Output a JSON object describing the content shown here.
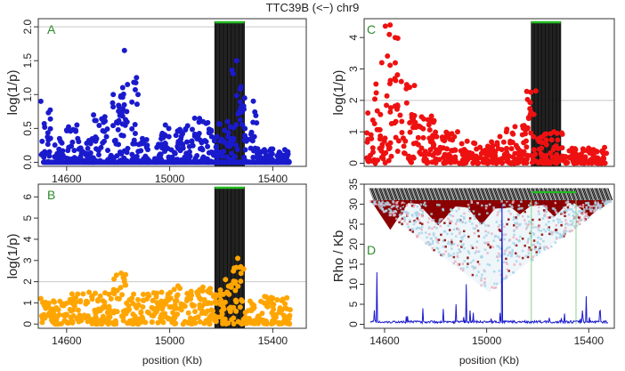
{
  "title": "TTC39B (<−) chr9",
  "colors": {
    "blue": "#1a1acd",
    "red": "#ee1111",
    "orange": "#ffa500",
    "green": "#22bb22",
    "darkred": "#8b0000",
    "lightblue": "#a8d4e6",
    "pink": "#e8b0c0",
    "rholine": "#1a1acd",
    "refline": "#c8c8c8"
  },
  "chart_data": [
    {
      "panel": "A",
      "type": "scatter",
      "color": "blue",
      "xlabel": "",
      "ylabel": "log(1/p)",
      "xlim": [
        14490,
        15530
      ],
      "ylim": [
        -0.06,
        2.12
      ],
      "yticks": [
        "0.0",
        "0.5",
        "1.0",
        "1.5",
        "2.0"
      ],
      "ytick_values": [
        0,
        0.5,
        1.0,
        1.5,
        2.0
      ],
      "xticks": [
        "14600",
        "15000",
        "15400"
      ],
      "xtick_values": [
        14600,
        15000,
        15400
      ],
      "threshold": 2.0,
      "gene_span": [
        15175,
        15290
      ],
      "clusters": [
        {
          "x0": 14500,
          "x1": 14540,
          "ymax": 0.9
        },
        {
          "x0": 14550,
          "x1": 14590,
          "ymax": 0.35
        },
        {
          "x0": 14600,
          "x1": 14640,
          "ymax": 0.55
        },
        {
          "x0": 14640,
          "x1": 14700,
          "ymax": 0.35
        },
        {
          "x0": 14700,
          "x1": 14760,
          "ymax": 0.7
        },
        {
          "x0": 14760,
          "x1": 14820,
          "ymax": 1.0
        },
        {
          "x0": 14800,
          "x1": 14830,
          "ymax": 1.65
        },
        {
          "x0": 14830,
          "x1": 14880,
          "ymax": 1.25
        },
        {
          "x0": 14880,
          "x1": 14920,
          "ymax": 0.35
        },
        {
          "x0": 14940,
          "x1": 14990,
          "ymax": 0.55
        },
        {
          "x0": 14990,
          "x1": 15060,
          "ymax": 0.5
        },
        {
          "x0": 15060,
          "x1": 15120,
          "ymax": 0.65
        },
        {
          "x0": 15120,
          "x1": 15180,
          "ymax": 0.6
        },
        {
          "x0": 15180,
          "x1": 15240,
          "ymax": 0.6
        },
        {
          "x0": 15240,
          "x1": 15290,
          "ymax": 1.5
        },
        {
          "x0": 15290,
          "x1": 15340,
          "ymax": 0.95
        },
        {
          "x0": 15340,
          "x1": 15470,
          "ymax": 0.2
        }
      ]
    },
    {
      "panel": "B",
      "type": "scatter",
      "color": "orange",
      "xlabel": "position (Kb)",
      "ylabel": "log(1/p)",
      "xlim": [
        14490,
        15530
      ],
      "ylim": [
        -0.2,
        6.6
      ],
      "yticks": [
        "0",
        "1",
        "2",
        "3",
        "4",
        "5",
        "6"
      ],
      "ytick_values": [
        0,
        1,
        2,
        3,
        4,
        5,
        6
      ],
      "xticks": [
        "14600",
        "15000",
        "15400"
      ],
      "xtick_values": [
        14600,
        15000,
        15400
      ],
      "threshold": 2.0,
      "gene_span": [
        15175,
        15290
      ],
      "clusters": [
        {
          "x0": 14500,
          "x1": 14620,
          "ymax": 1.2
        },
        {
          "x0": 14620,
          "x1": 14780,
          "ymax": 1.5
        },
        {
          "x0": 14780,
          "x1": 14830,
          "ymax": 2.4
        },
        {
          "x0": 14830,
          "x1": 15000,
          "ymax": 1.5
        },
        {
          "x0": 15000,
          "x1": 15180,
          "ymax": 1.8
        },
        {
          "x0": 15180,
          "x1": 15240,
          "ymax": 2.1
        },
        {
          "x0": 15240,
          "x1": 15290,
          "ymax": 3.1
        },
        {
          "x0": 15290,
          "x1": 15470,
          "ymax": 1.3
        }
      ]
    },
    {
      "panel": "C",
      "type": "scatter",
      "color": "red",
      "xlabel": "",
      "ylabel": "log(1/p)",
      "xlim": [
        14520,
        15500
      ],
      "ylim": [
        -0.1,
        4.6
      ],
      "yticks": [
        "0",
        "1",
        "2",
        "3",
        "4"
      ],
      "ytick_values": [
        0,
        1,
        2,
        3,
        4
      ],
      "xticks": [],
      "xtick_values": [],
      "threshold": 2.0,
      "gene_span": [
        15175,
        15290
      ],
      "clusters": [
        {
          "x0": 14530,
          "x1": 14560,
          "ymax": 1.6
        },
        {
          "x0": 14560,
          "x1": 14600,
          "ymax": 3.2
        },
        {
          "x0": 14600,
          "x1": 14640,
          "ymax": 4.4
        },
        {
          "x0": 14640,
          "x1": 14680,
          "ymax": 4.0
        },
        {
          "x0": 14680,
          "x1": 14720,
          "ymax": 2.5
        },
        {
          "x0": 14720,
          "x1": 14800,
          "ymax": 1.5
        },
        {
          "x0": 14800,
          "x1": 14900,
          "ymax": 1.0
        },
        {
          "x0": 14900,
          "x1": 15050,
          "ymax": 0.7
        },
        {
          "x0": 15050,
          "x1": 15150,
          "ymax": 1.2
        },
        {
          "x0": 15150,
          "x1": 15200,
          "ymax": 2.3
        },
        {
          "x0": 15200,
          "x1": 15300,
          "ymax": 1.0
        },
        {
          "x0": 15300,
          "x1": 15470,
          "ymax": 0.5
        }
      ]
    },
    {
      "panel": "D",
      "type": "line",
      "color": "rholine",
      "xlabel": "position (Kb)",
      "ylabel": "Rho / Kb",
      "xlim": [
        14520,
        15500
      ],
      "ylim": [
        -1,
        35
      ],
      "yticks": [
        "0",
        "5",
        "10",
        "15",
        "20",
        "25",
        "30",
        "35"
      ],
      "ytick_values": [
        0,
        5,
        10,
        15,
        20,
        25,
        30,
        35
      ],
      "xticks": [
        "14600",
        "15000",
        "15400"
      ],
      "xtick_values": [
        14600,
        15000,
        15400
      ],
      "gene_span": [
        15175,
        15350
      ],
      "tall_spikes": [
        {
          "x": 14570,
          "y": 13
        },
        {
          "x": 14920,
          "y": 10
        },
        {
          "x": 15060,
          "y": 30
        },
        {
          "x": 15390,
          "y": 7
        },
        {
          "x": 14880,
          "y": 5
        },
        {
          "x": 14750,
          "y": 4
        }
      ]
    }
  ]
}
